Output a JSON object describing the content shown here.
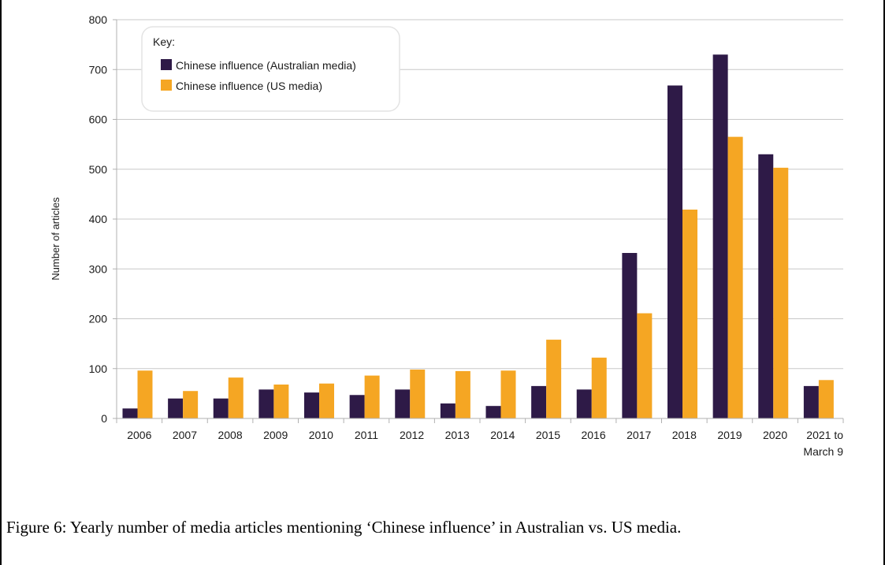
{
  "caption": "Figure 6: Yearly number of media articles mentioning ‘Chinese influence’ in Australian vs. US media.",
  "chart_data": {
    "type": "bar",
    "title": "",
    "xlabel": "",
    "ylabel": "Number of articles",
    "ylim": [
      0,
      800
    ],
    "yticks": [
      0,
      100,
      200,
      300,
      400,
      500,
      600,
      700,
      800
    ],
    "grid": true,
    "legend_title": "Key:",
    "legend_position": "top-left",
    "categories": [
      "2006",
      "2007",
      "2008",
      "2009",
      "2010",
      "2011",
      "2012",
      "2013",
      "2014",
      "2015",
      "2016",
      "2017",
      "2018",
      "2019",
      "2020",
      "2021 to March 9"
    ],
    "category_lines": [
      [
        "2006"
      ],
      [
        "2007"
      ],
      [
        "2008"
      ],
      [
        "2009"
      ],
      [
        "2010"
      ],
      [
        "2011"
      ],
      [
        "2012"
      ],
      [
        "2013"
      ],
      [
        "2014"
      ],
      [
        "2015"
      ],
      [
        "2016"
      ],
      [
        "2017"
      ],
      [
        "2018"
      ],
      [
        "2019"
      ],
      [
        "2020"
      ],
      [
        "2021 to",
        "March 9"
      ]
    ],
    "series": [
      {
        "name": "Chinese influence (Australian media)",
        "color": "#2e1a47",
        "values": [
          20,
          40,
          40,
          58,
          52,
          47,
          58,
          30,
          25,
          65,
          58,
          332,
          668,
          730,
          530,
          65
        ]
      },
      {
        "name": "Chinese influence (US media)",
        "color": "#f5a623",
        "values": [
          96,
          55,
          82,
          68,
          70,
          86,
          98,
          95,
          96,
          158,
          122,
          211,
          419,
          565,
          503,
          77
        ]
      }
    ]
  }
}
